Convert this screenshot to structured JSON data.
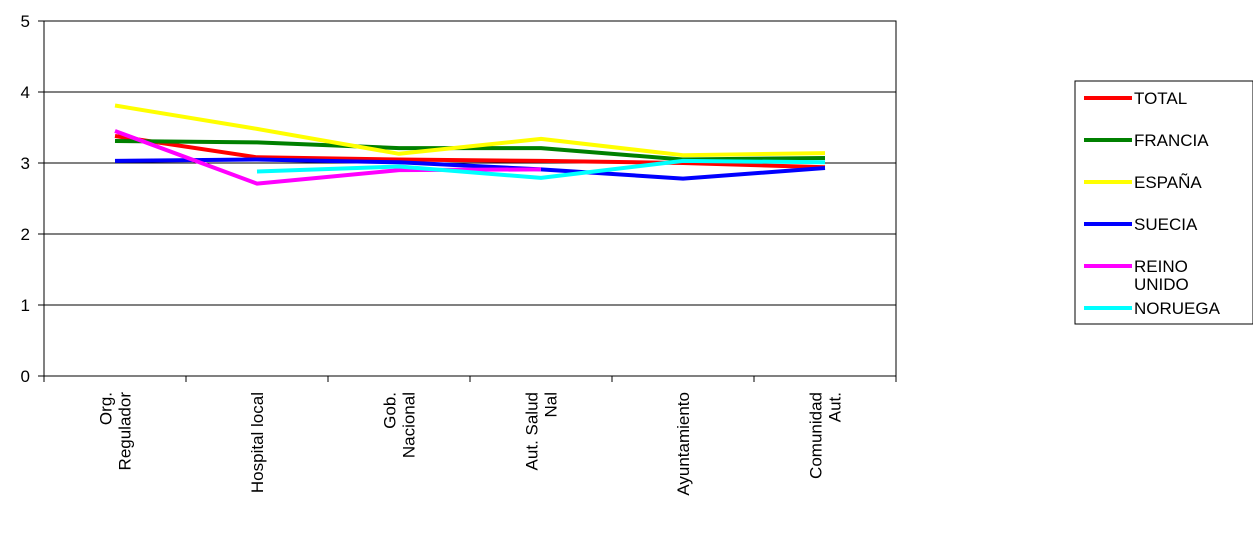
{
  "chart_data": {
    "type": "line",
    "title": "",
    "xlabel": "",
    "ylabel": "",
    "categories": [
      [
        "Org.",
        "Regulador"
      ],
      [
        "Hospital local"
      ],
      [
        "Gob.",
        "Nacional"
      ],
      [
        "Aut. Salud",
        "Nal"
      ],
      [
        "Ayuntamiento"
      ],
      [
        "Comunidad",
        "Aut."
      ]
    ],
    "ylim": [
      0,
      5
    ],
    "yticks": [
      0,
      1,
      2,
      3,
      4,
      5
    ],
    "grid": true,
    "legend_position": "right",
    "series": [
      {
        "name": "TOTAL",
        "color": "#ff0000",
        "values": [
          3.38,
          3.08,
          3.05,
          3.03,
          3.0,
          2.94
        ]
      },
      {
        "name": "FRANCIA",
        "color": "#008000",
        "values": [
          3.31,
          3.29,
          3.21,
          3.21,
          3.05,
          3.07
        ]
      },
      {
        "name": "ESPAÑA",
        "color": "#ffff00",
        "values": [
          3.81,
          3.48,
          3.13,
          3.34,
          3.11,
          3.14
        ]
      },
      {
        "name": "SUECIA",
        "color": "#0000ff",
        "values": [
          3.03,
          3.05,
          3.01,
          2.91,
          2.78,
          2.93
        ]
      },
      {
        "name": "REINO UNIDO",
        "color": "#ff00ff",
        "values": [
          3.45,
          2.71,
          2.9,
          2.91,
          null,
          null
        ]
      },
      {
        "name": "NORUEGA",
        "color": "#00ffff",
        "values": [
          null,
          2.88,
          2.95,
          2.79,
          3.03,
          3.01
        ]
      }
    ]
  }
}
